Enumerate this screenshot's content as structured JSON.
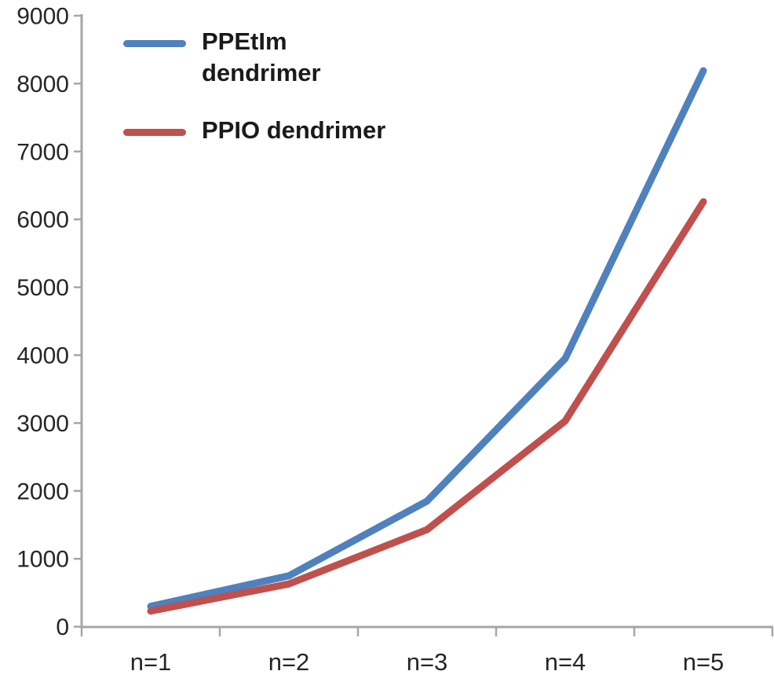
{
  "chart_data": {
    "type": "line",
    "title": "",
    "xlabel": "",
    "ylabel": "",
    "categories": [
      "n=1",
      "n=2",
      "n=3",
      "n=4",
      "n=5"
    ],
    "series": [
      {
        "name": "PPEtIm dendrimer",
        "color": "#4F81BD",
        "values": [
          300,
          750,
          1850,
          3950,
          8190
        ]
      },
      {
        "name": "PPIO dendrimer",
        "color": "#C0504D",
        "values": [
          230,
          630,
          1430,
          3030,
          6260
        ]
      }
    ],
    "ylim": [
      0,
      9000
    ],
    "y_ticks": [
      0,
      1000,
      2000,
      3000,
      4000,
      5000,
      6000,
      7000,
      8000,
      9000
    ],
    "grid": false,
    "legend_position": "top-left",
    "axis_color": "#A6A6A6",
    "tick_label_color": "#262626",
    "legend_text_color": "#1A1A1A",
    "line_width": 9
  }
}
